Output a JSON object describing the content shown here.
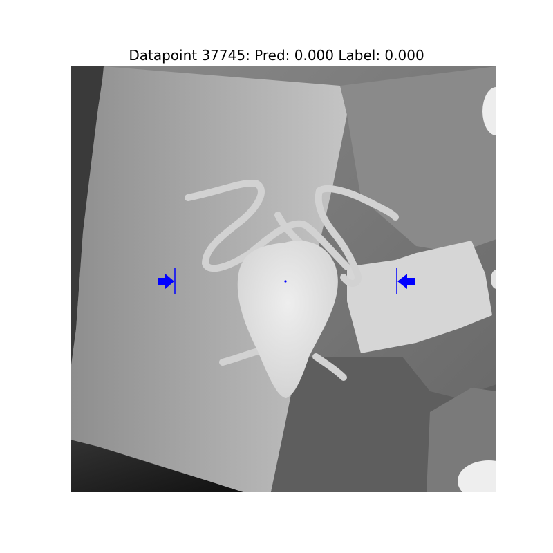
{
  "figure": {
    "title": "Datapoint 37745: Pred: 0.000 Label: 0.000"
  },
  "image": {
    "description_icon": "depth-map-image",
    "colormap": "grayscale"
  },
  "annotations": {
    "color": "#0000ff",
    "markers": [
      "left-grasp-arrow-icon",
      "right-grasp-arrow-icon",
      "center-point-icon"
    ]
  }
}
